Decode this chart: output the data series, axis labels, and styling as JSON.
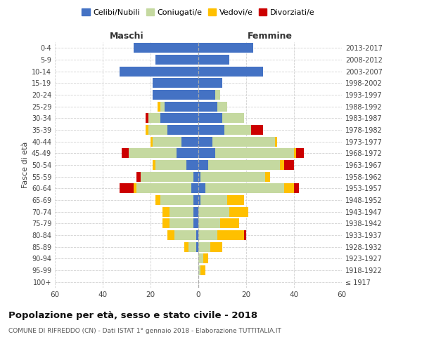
{
  "age_groups": [
    "100+",
    "95-99",
    "90-94",
    "85-89",
    "80-84",
    "75-79",
    "70-74",
    "65-69",
    "60-64",
    "55-59",
    "50-54",
    "45-49",
    "40-44",
    "35-39",
    "30-34",
    "25-29",
    "20-24",
    "15-19",
    "10-14",
    "5-9",
    "0-4"
  ],
  "birth_years": [
    "≤ 1917",
    "1918-1922",
    "1923-1927",
    "1928-1932",
    "1933-1937",
    "1938-1942",
    "1943-1947",
    "1948-1952",
    "1953-1957",
    "1958-1962",
    "1963-1967",
    "1968-1972",
    "1973-1977",
    "1978-1982",
    "1983-1987",
    "1988-1992",
    "1993-1997",
    "1998-2002",
    "2003-2007",
    "2008-2012",
    "2013-2017"
  ],
  "male": {
    "celibi": [
      0,
      0,
      0,
      1,
      1,
      2,
      2,
      2,
      3,
      2,
      5,
      9,
      7,
      13,
      16,
      14,
      19,
      19,
      33,
      18,
      27
    ],
    "coniugati": [
      0,
      0,
      0,
      3,
      9,
      10,
      10,
      14,
      23,
      22,
      13,
      20,
      12,
      8,
      5,
      2,
      0,
      0,
      0,
      0,
      0
    ],
    "vedovi": [
      0,
      0,
      0,
      2,
      3,
      3,
      3,
      2,
      1,
      0,
      1,
      0,
      1,
      1,
      0,
      1,
      0,
      0,
      0,
      0,
      0
    ],
    "divorziati": [
      0,
      0,
      0,
      0,
      0,
      0,
      0,
      0,
      6,
      2,
      0,
      3,
      0,
      0,
      1,
      0,
      0,
      0,
      0,
      0,
      0
    ]
  },
  "female": {
    "nubili": [
      0,
      0,
      0,
      0,
      0,
      0,
      0,
      1,
      3,
      1,
      4,
      7,
      6,
      11,
      10,
      8,
      7,
      10,
      27,
      13,
      23
    ],
    "coniugate": [
      0,
      1,
      2,
      5,
      8,
      9,
      13,
      11,
      33,
      27,
      30,
      33,
      26,
      11,
      9,
      4,
      2,
      0,
      0,
      0,
      0
    ],
    "vedove": [
      0,
      2,
      2,
      5,
      11,
      8,
      8,
      7,
      4,
      2,
      2,
      1,
      1,
      0,
      0,
      0,
      0,
      0,
      0,
      0,
      0
    ],
    "divorziate": [
      0,
      0,
      0,
      0,
      1,
      0,
      0,
      0,
      2,
      0,
      4,
      3,
      0,
      5,
      0,
      0,
      0,
      0,
      0,
      0,
      0
    ]
  },
  "colors": {
    "celibi": "#4472c4",
    "coniugati": "#c5d9a0",
    "vedovi": "#ffc000",
    "divorziati": "#cc0000"
  },
  "xlim": 60,
  "title": "Popolazione per età, sesso e stato civile - 2018",
  "subtitle": "COMUNE DI RIFREDDO (CN) - Dati ISTAT 1° gennaio 2018 - Elaborazione TUTTITALIA.IT",
  "ylabel": "Fasce di età",
  "legend_labels": [
    "Celibi/Nubili",
    "Coniugati/e",
    "Vedovi/e",
    "Divorziati/e"
  ],
  "header_maschi": "Maschi",
  "header_femmine": "Femmine",
  "bg_color": "#ffffff",
  "grid_color": "#cccccc",
  "bar_height": 0.85
}
